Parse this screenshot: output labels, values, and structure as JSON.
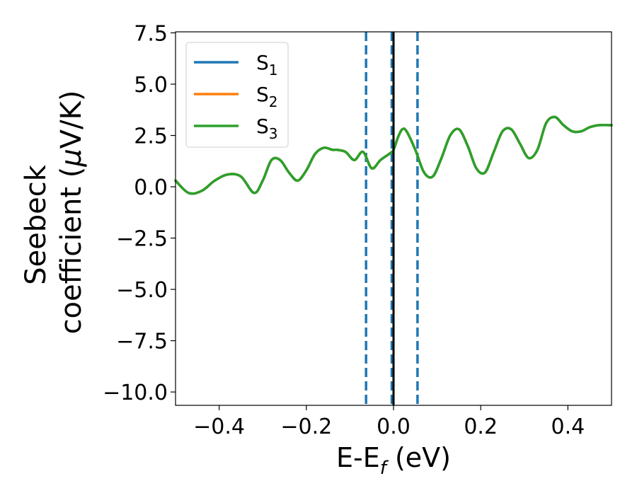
{
  "chart_data": {
    "type": "line",
    "title": "",
    "xlabel_main": "E-E",
    "xlabel_sub": "f",
    "xlabel_unit": " (eV)",
    "ylabel_line1": "Seebeck",
    "ylabel_line2_text": "coefficient  (",
    "ylabel_line2_mu": "μ",
    "ylabel_line2_unit": "V/K)",
    "xlim": [
      -0.5,
      0.5
    ],
    "ylim": [
      -10.65,
      7.55
    ],
    "x_ticks": [
      -0.4,
      -0.2,
      0.0,
      0.2,
      0.4
    ],
    "x_tick_labels": [
      "−0.4",
      "−0.2",
      "0.0",
      "0.2",
      "0.4"
    ],
    "y_ticks": [
      7.5,
      5.0,
      2.5,
      0.0,
      -2.5,
      -5.0,
      -7.5,
      -10.0
    ],
    "y_tick_labels": [
      "7.5",
      "5.0",
      "2.5",
      "0.0",
      "−2.5",
      "−5.0",
      "−7.5",
      "−10.0"
    ],
    "grid": false,
    "legend_position": "top-left",
    "series": [
      {
        "name": "S",
        "sub": "1",
        "color": "#1f77b4",
        "x": [
          -0.5,
          -0.47,
          -0.44,
          -0.41,
          -0.38,
          -0.35,
          -0.32,
          -0.3,
          -0.28,
          -0.26,
          -0.24,
          -0.22,
          -0.2,
          -0.18,
          -0.16,
          -0.14,
          -0.13,
          -0.11,
          -0.09,
          -0.07,
          -0.05,
          -0.03,
          -0.01,
          0.0,
          0.01,
          0.02,
          0.03,
          0.05,
          0.07,
          0.09,
          0.11,
          0.13,
          0.15,
          0.17,
          0.19,
          0.21,
          0.23,
          0.25,
          0.27,
          0.29,
          0.31,
          0.33,
          0.35,
          0.37,
          0.39,
          0.41,
          0.43,
          0.45,
          0.47,
          0.5
        ],
        "y": [
          0.3,
          -0.3,
          -0.2,
          0.3,
          0.6,
          0.5,
          -0.3,
          0.3,
          1.3,
          1.3,
          0.7,
          0.3,
          0.8,
          1.6,
          1.9,
          1.8,
          1.8,
          1.7,
          1.3,
          1.7,
          0.9,
          1.3,
          1.6,
          1.8,
          2.4,
          2.8,
          2.7,
          1.8,
          0.7,
          0.5,
          1.4,
          2.5,
          2.8,
          2.0,
          0.9,
          0.7,
          1.7,
          2.7,
          2.8,
          2.1,
          1.4,
          1.8,
          3.1,
          3.4,
          3.0,
          2.7,
          2.7,
          2.9,
          3.0,
          3.0
        ]
      },
      {
        "name": "S",
        "sub": "2",
        "color": "#ff7f0e",
        "x": [
          -0.5,
          -0.47,
          -0.44,
          -0.41,
          -0.38,
          -0.35,
          -0.32,
          -0.3,
          -0.28,
          -0.26,
          -0.24,
          -0.22,
          -0.2,
          -0.18,
          -0.16,
          -0.14,
          -0.13,
          -0.11,
          -0.09,
          -0.07,
          -0.05,
          -0.03,
          -0.01,
          0.0,
          0.01,
          0.02,
          0.03,
          0.05,
          0.07,
          0.09,
          0.11,
          0.13,
          0.15,
          0.17,
          0.19,
          0.21,
          0.23,
          0.25,
          0.27,
          0.29,
          0.31,
          0.33,
          0.35,
          0.37,
          0.39,
          0.41,
          0.43,
          0.45,
          0.47,
          0.5
        ],
        "y": [
          0.3,
          -0.3,
          -0.2,
          0.3,
          0.6,
          0.5,
          -0.3,
          0.3,
          1.3,
          1.3,
          0.7,
          0.3,
          0.8,
          1.6,
          1.9,
          1.8,
          1.8,
          1.7,
          1.3,
          1.7,
          0.9,
          1.3,
          1.6,
          1.8,
          2.4,
          2.8,
          2.7,
          1.8,
          0.7,
          0.5,
          1.4,
          2.5,
          2.8,
          2.0,
          0.9,
          0.7,
          1.7,
          2.7,
          2.8,
          2.1,
          1.4,
          1.8,
          3.1,
          3.4,
          3.0,
          2.7,
          2.7,
          2.9,
          3.0,
          3.0
        ]
      },
      {
        "name": "S",
        "sub": "3",
        "color": "#2ca02c",
        "x": [
          -0.5,
          -0.47,
          -0.44,
          -0.41,
          -0.38,
          -0.35,
          -0.32,
          -0.3,
          -0.28,
          -0.26,
          -0.24,
          -0.22,
          -0.2,
          -0.18,
          -0.16,
          -0.14,
          -0.13,
          -0.11,
          -0.09,
          -0.07,
          -0.05,
          -0.03,
          -0.01,
          0.0,
          0.01,
          0.02,
          0.03,
          0.05,
          0.07,
          0.09,
          0.11,
          0.13,
          0.15,
          0.17,
          0.19,
          0.21,
          0.23,
          0.25,
          0.27,
          0.29,
          0.31,
          0.33,
          0.35,
          0.37,
          0.39,
          0.41,
          0.43,
          0.45,
          0.47,
          0.5
        ],
        "y": [
          0.3,
          -0.3,
          -0.2,
          0.3,
          0.6,
          0.5,
          -0.3,
          0.3,
          1.3,
          1.3,
          0.7,
          0.3,
          0.8,
          1.6,
          1.9,
          1.8,
          1.8,
          1.7,
          1.3,
          1.7,
          0.9,
          1.3,
          1.6,
          1.8,
          2.4,
          2.8,
          2.7,
          1.8,
          0.7,
          0.5,
          1.4,
          2.5,
          2.8,
          2.0,
          0.9,
          0.7,
          1.7,
          2.7,
          2.8,
          2.1,
          1.4,
          1.8,
          3.1,
          3.4,
          3.0,
          2.7,
          2.7,
          2.9,
          3.0,
          3.0
        ]
      }
    ],
    "vertical_lines": [
      {
        "x": -0.063,
        "style": "dashed",
        "color": "#1f77b4"
      },
      {
        "x": -0.004,
        "style": "dashed",
        "color": "#1f77b4"
      },
      {
        "x": 0.0,
        "style": "solid",
        "color": "#000000"
      },
      {
        "x": 0.055,
        "style": "dashed",
        "color": "#1f77b4"
      }
    ]
  }
}
